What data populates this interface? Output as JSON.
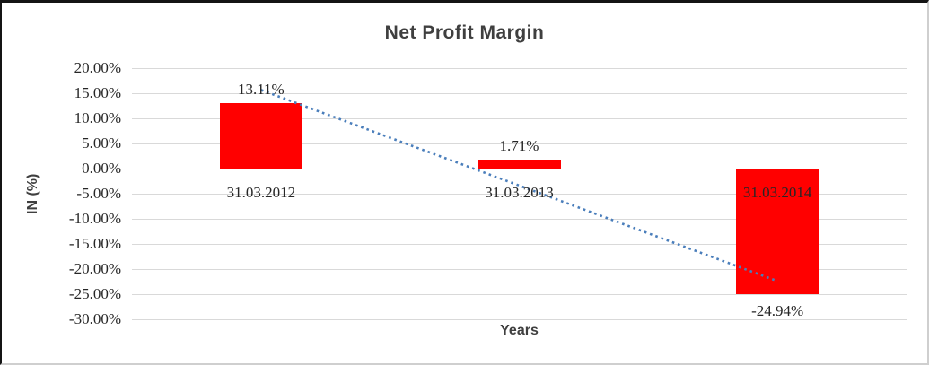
{
  "chart_data": {
    "type": "bar",
    "title": "Net Profit Margin",
    "xlabel": "Years",
    "ylabel": "IN (%)",
    "categories": [
      "31.03.2012",
      "31.03.2013",
      "31.03.2014"
    ],
    "values": [
      13.11,
      1.71,
      -24.94
    ],
    "data_labels": [
      "13.11%",
      "1.71%",
      "-24.94%"
    ],
    "ylim": [
      -30,
      20
    ],
    "ytick_values": [
      20,
      15,
      10,
      5,
      0,
      -5,
      -10,
      -15,
      -20,
      -25,
      -30
    ],
    "ytick_labels": [
      "20.00%",
      "15.00%",
      "10.00%",
      "5.00%",
      "0.00%",
      "-5.00%",
      "-10.00%",
      "-15.00%",
      "-20.00%",
      "-25.00%",
      "-30.00%"
    ],
    "grid": true,
    "legend": "none",
    "bar_color": "#ff0000",
    "gridline_color": "#d9d9d9",
    "title_color": "#3f3f3f",
    "label_color": "#262626",
    "trendline": {
      "type": "linear",
      "style": "dotted",
      "color": "#4a7ebb",
      "start_value": 15.65,
      "end_value": -22.4
    }
  }
}
